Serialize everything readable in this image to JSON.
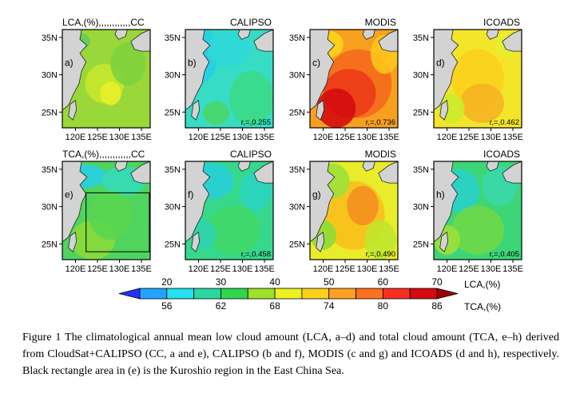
{
  "chart_data": [
    {
      "type": "heatmap",
      "panel": "a)",
      "title": "LCA,(%),,,,,,,,,,,,CC",
      "r_label": "",
      "xticks": [
        "120E",
        "125E",
        "130E",
        "135E"
      ],
      "yticks": [
        "35N",
        "30N",
        "25N"
      ],
      "has_box": false
    },
    {
      "type": "heatmap",
      "panel": "b)",
      "title": "CALIPSO",
      "r_label": "r,=,0.255",
      "xticks": [
        "120E",
        "125E",
        "130E",
        "135E"
      ],
      "yticks": [
        "35N",
        "30N",
        "25N"
      ],
      "has_box": false
    },
    {
      "type": "heatmap",
      "panel": "c)",
      "title": "MODIS",
      "r_label": "r,=,0.736",
      "xticks": [
        "120E",
        "125E",
        "130E",
        "135E"
      ],
      "yticks": [
        "35N",
        "30N",
        "25N"
      ],
      "has_box": false
    },
    {
      "type": "heatmap",
      "panel": "d)",
      "title": "ICOADS",
      "r_label": "r,=,0.462",
      "xticks": [
        "120E",
        "125E",
        "130E",
        "135E"
      ],
      "yticks": [
        "35N",
        "30N",
        "25N"
      ],
      "has_box": false
    },
    {
      "type": "heatmap",
      "panel": "e)",
      "title": "TCA,(%),,,,,,,,,,,,CC",
      "r_label": "",
      "xticks": [
        "120E",
        "125E",
        "130E",
        "135E"
      ],
      "yticks": [
        "35N",
        "30N",
        "25N"
      ],
      "has_box": true
    },
    {
      "type": "heatmap",
      "panel": "f)",
      "title": "CALIPSO",
      "r_label": "r,=,0.458",
      "xticks": [
        "120E",
        "125E",
        "130E",
        "135E"
      ],
      "yticks": [
        "35N",
        "30N",
        "25N"
      ],
      "has_box": false
    },
    {
      "type": "heatmap",
      "panel": "g)",
      "title": "MODIS",
      "r_label": "r,=,0.490",
      "xticks": [
        "120E",
        "125E",
        "130E",
        "135E"
      ],
      "yticks": [
        "35N",
        "30N",
        "25N"
      ],
      "has_box": false
    },
    {
      "type": "heatmap",
      "panel": "h)",
      "title": "ICOADS",
      "r_label": "r,=,0.405",
      "xticks": [
        "120E",
        "125E",
        "130E",
        "135E"
      ],
      "yticks": [
        "35N",
        "30N",
        "25N"
      ],
      "has_box": false
    }
  ],
  "colorbar": {
    "lca_ticks": [
      "20",
      "30",
      "40",
      "50",
      "60",
      "70"
    ],
    "lca_label": "LCA,(%)",
    "tca_ticks": [
      "56",
      "62",
      "68",
      "74",
      "80",
      "86"
    ],
    "tca_label": "TCA,(%)",
    "colors": [
      "#2233ff",
      "#22a3ff",
      "#25e0ee",
      "#2ad7a0",
      "#30d550",
      "#9ee02a",
      "#ecf220",
      "#ffd01a",
      "#ffa022",
      "#ff7020",
      "#f53020",
      "#d40a10",
      "#a00000"
    ]
  },
  "caption": "Figure 1 The climatological annual mean low cloud amount (LCA, a–d) and total cloud amount (TCA, e–h) derived from CloudSat+CALIPSO (CC, a and e), CALIPSO (b and f), MODIS (c and g) and ICOADS (d and h), respectively. Black rectangle area in (e) is the Kuroshio region in the East China Sea."
}
